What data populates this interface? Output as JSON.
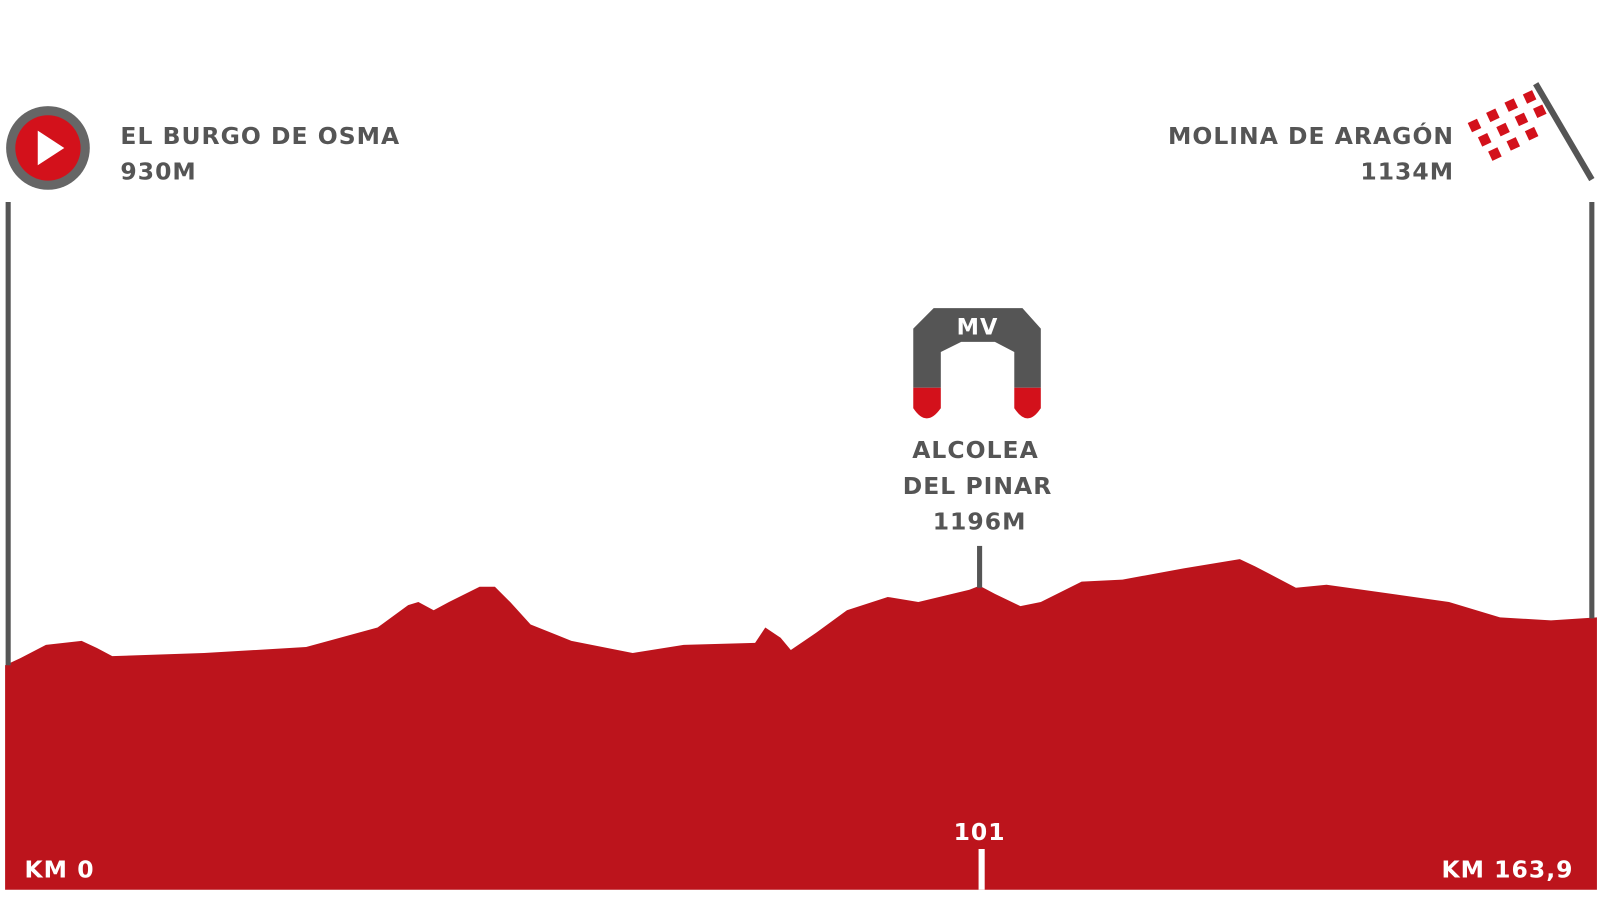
{
  "start": {
    "name": "EL BURGO DE OSMA",
    "altitude": "930M",
    "km": "KM 0"
  },
  "finish": {
    "name": "MOLINA DE ARAGÓN",
    "altitude": "1134M",
    "km": "KM 163,9"
  },
  "sprint": {
    "badge": "MV",
    "name_line1": "ALCOLEA",
    "name_line2": "DEL PINAR",
    "altitude": "1196M",
    "km": "101"
  }
}
